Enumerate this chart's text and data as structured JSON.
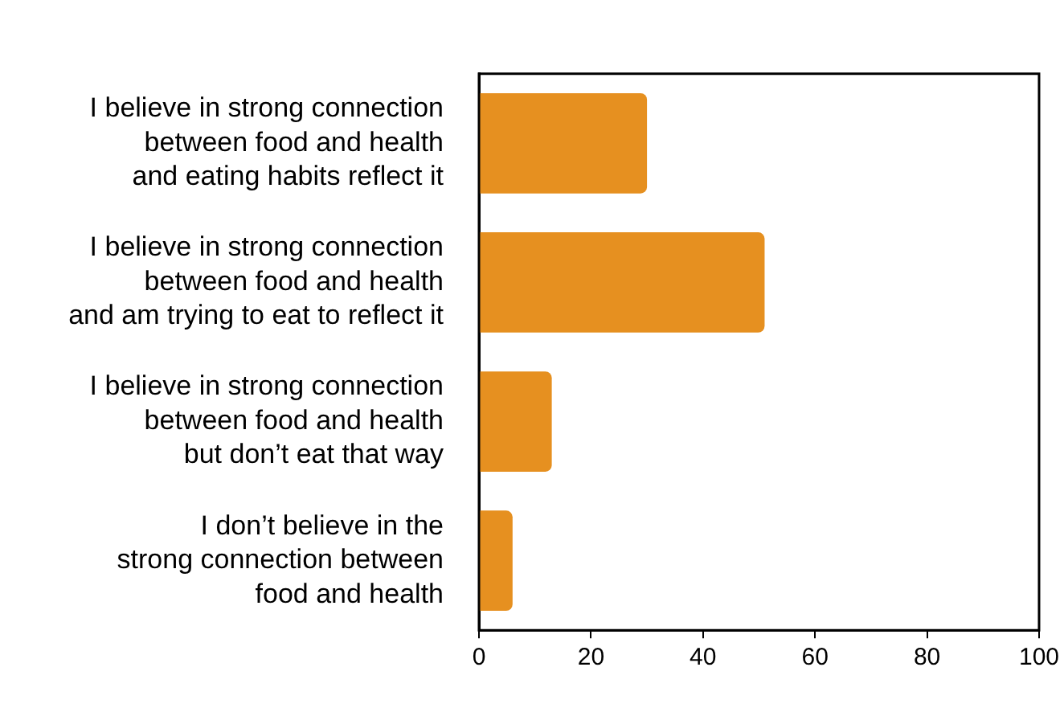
{
  "chart_data": {
    "type": "bar",
    "orientation": "horizontal",
    "categories": [
      "I believe in strong connection\nbetween food and health\nand eating habits reflect it",
      "I believe in strong connection\nbetween food and health\nand am trying to eat to reflect it",
      "I believe in strong connection\nbetween food and health\nbut don’t eat that way",
      "I don’t believe in the\nstrong connection between\nfood and health"
    ],
    "values": [
      30,
      51,
      13,
      6
    ],
    "color": "#e69020",
    "xlim": [
      0,
      100
    ],
    "xticks": [
      0,
      20,
      40,
      60,
      80,
      100
    ],
    "grid": false,
    "legend": false
  }
}
